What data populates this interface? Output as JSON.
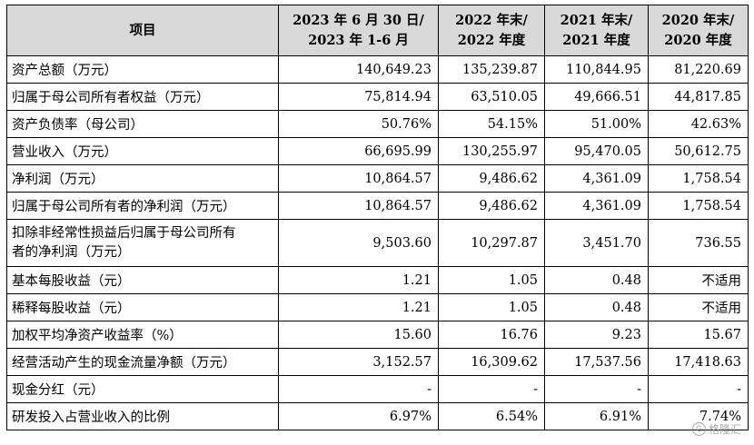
{
  "header": {
    "item": "项目",
    "col1": [
      "2023 年 6 月 30 日/",
      "2023 年 1-6 月"
    ],
    "col2": [
      "2022 年末/",
      "2022 年度"
    ],
    "col3": [
      "2021 年末/",
      "2021 年度"
    ],
    "col4": [
      "2020 年末/",
      "2020 年度"
    ]
  },
  "rows": [
    {
      "label": "资产总额（万元）",
      "v": [
        "140,649.23",
        "135,239.87",
        "110,844.95",
        "81,220.69"
      ]
    },
    {
      "label": "归属于母公司所有者权益（万元）",
      "v": [
        "75,814.94",
        "63,510.05",
        "49,666.51",
        "44,817.85"
      ]
    },
    {
      "label": "资产负债率（母公司）",
      "v": [
        "50.76%",
        "54.15%",
        "51.00%",
        "42.63%"
      ]
    },
    {
      "label": "营业收入（万元）",
      "v": [
        "66,695.99",
        "130,255.97",
        "95,470.05",
        "50,612.75"
      ]
    },
    {
      "label": "净利润（万元）",
      "v": [
        "10,864.57",
        "9,486.62",
        "4,361.09",
        "1,758.54"
      ]
    },
    {
      "label": "归属于母公司所有者的净利润（万元）",
      "v": [
        "10,864.57",
        "9,486.62",
        "4,361.09",
        "1,758.54"
      ]
    },
    {
      "label": "扣除非经常性损益后归属于母公司所有者的净利润（万元）",
      "label_lines": [
        "扣除非经常性损益后归属于母公司所有",
        "者的净利润（万元）"
      ],
      "v": [
        "9,503.60",
        "10,297.87",
        "3,451.70",
        "736.55"
      ]
    },
    {
      "label": "基本每股收益（元）",
      "v": [
        "1.21",
        "1.05",
        "0.48",
        "不适用"
      ]
    },
    {
      "label": "稀释每股收益（元）",
      "v": [
        "1.21",
        "1.05",
        "0.48",
        "不适用"
      ]
    },
    {
      "label": "加权平均净资产收益率（%）",
      "v": [
        "15.60",
        "16.76",
        "9.23",
        "15.67"
      ]
    },
    {
      "label": "经营活动产生的现金流量净额（万元）",
      "v": [
        "3,152.57",
        "16,309.62",
        "17,537.56",
        "17,418.63"
      ]
    },
    {
      "label": "现金分红（元）",
      "v": [
        "-",
        "-",
        "-",
        "-"
      ]
    },
    {
      "label": "研发投入占营业收入的比例",
      "v": [
        "6.97%",
        "6.54%",
        "6.91%",
        "7.74%"
      ]
    }
  ],
  "watermark": {
    "text": "格隆汇",
    "icon": "gelonghui-logo-icon"
  }
}
